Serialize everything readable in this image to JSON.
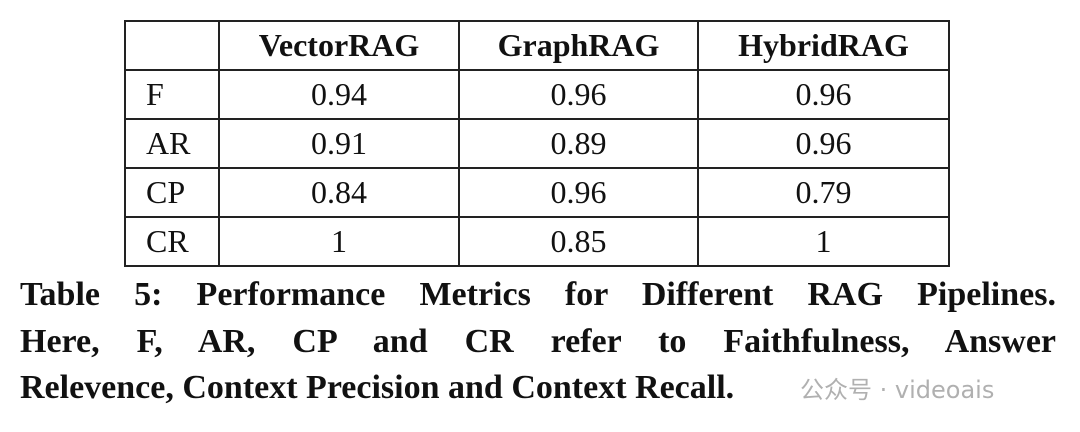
{
  "table": {
    "header": [
      "",
      "VectorRAG",
      "GraphRAG",
      "HybridRAG"
    ],
    "rows": [
      [
        "F",
        0.94,
        0.96,
        0.96
      ],
      [
        "AR",
        0.91,
        0.89,
        0.96
      ],
      [
        "CP",
        0.84,
        0.96,
        0.79
      ],
      [
        "CR",
        1,
        0.85,
        1
      ]
    ]
  },
  "caption": {
    "lines": [
      "Table 5: Performance Metrics for Different RAG Pipelines.",
      "Here, F, AR, CP and CR refer to Faithfulness, Answer",
      "Relevence, Context Precision and Context Recall."
    ]
  },
  "watermark": "公众号 · videoais"
}
